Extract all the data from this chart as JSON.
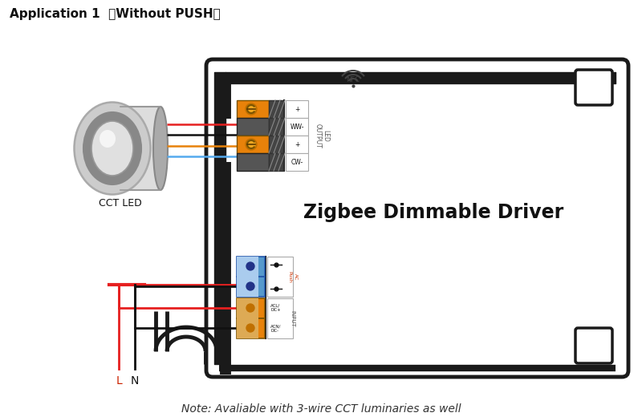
{
  "title": "Application 1  （Without PUSH）",
  "note": "Note: Avaliable with 3-wire CCT luminaries as well",
  "driver_label": "Zigbee Dimmable Driver",
  "cct_led_label": "CCT LED",
  "bg_color": "#ffffff",
  "line_color": "#1a1a1a",
  "orange_color": "#e8820a",
  "blue_color": "#5599cc",
  "wire_red": "#e62020",
  "wire_orange": "#e8820a",
  "wire_blue": "#55aaee",
  "wire_black": "#111111"
}
